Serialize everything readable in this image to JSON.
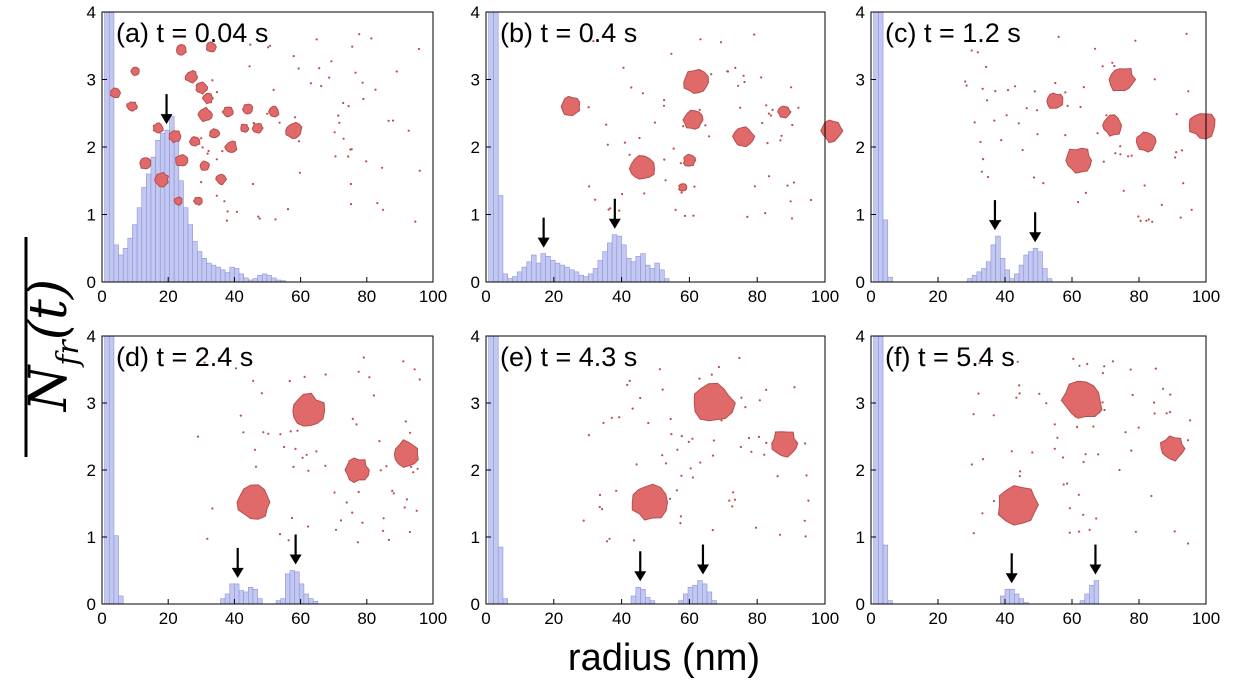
{
  "figure": {
    "xlabel": "radius (nm)",
    "ylabel_main": "N",
    "ylabel_sub": "fr",
    "ylabel_arg": "(t)",
    "colors": {
      "bar_fill": "#c3c8f0",
      "bar_stroke": "#8d93dc",
      "cluster": "#e06a6a",
      "cluster_edge": "#b84d4d",
      "arrow": "#000000"
    }
  },
  "chart_data": [
    {
      "type": "bar",
      "label": "(a)  t = 0.04 s",
      "xlim": [
        0,
        100
      ],
      "ylim": [
        0,
        4
      ],
      "xticks": [
        0,
        20,
        40,
        60,
        80,
        100
      ],
      "yticks": [
        0,
        1,
        2,
        3,
        4
      ],
      "bin_width": 1.4,
      "bins_x": [
        1.5,
        2.9,
        4.3,
        5.7,
        7.1,
        8.5,
        9.9,
        11.3,
        12.7,
        14.1,
        15.5,
        16.9,
        18.3,
        19.7,
        21.1,
        22.5,
        23.9,
        25.3,
        26.7,
        28.1,
        29.5,
        30.9,
        32.3,
        33.7,
        35.1,
        36.5,
        37.9,
        39.3,
        40.7,
        42.1,
        43.5,
        44.9,
        46.3,
        47.7,
        49.1,
        50.5,
        51.9,
        53.3,
        54.7
      ],
      "bins_y": [
        4.0,
        4.0,
        0.55,
        0.4,
        0.5,
        0.65,
        0.85,
        1.1,
        1.4,
        1.6,
        1.85,
        2.1,
        2.2,
        2.25,
        2.45,
        2.15,
        1.5,
        1.1,
        0.85,
        0.6,
        0.45,
        0.35,
        0.28,
        0.25,
        0.22,
        0.18,
        0.14,
        0.22,
        0.2,
        0.12,
        0.06,
        0.03,
        0.05,
        0.1,
        0.12,
        0.1,
        0.06,
        0.03,
        0.02
      ],
      "arrows": [
        19.5
      ],
      "clusters": [
        {
          "x": 0.54,
          "y": 0.3,
          "r": 5
        },
        {
          "x": 0.6,
          "y": 0.22,
          "r": 4
        },
        {
          "x": 0.59,
          "y": 0.35,
          "r": 5
        },
        {
          "x": 0.74,
          "y": 0.14,
          "r": 5
        },
        {
          "x": 0.83,
          "y": 0.13,
          "r": 5
        },
        {
          "x": 0.77,
          "y": 0.24,
          "r": 6
        },
        {
          "x": 0.8,
          "y": 0.28,
          "r": 6
        },
        {
          "x": 0.82,
          "y": 0.32,
          "r": 5
        },
        {
          "x": 0.67,
          "y": 0.43,
          "r": 5
        },
        {
          "x": 0.72,
          "y": 0.46,
          "r": 6
        },
        {
          "x": 0.81,
          "y": 0.38,
          "r": 7
        },
        {
          "x": 0.88,
          "y": 0.37,
          "r": 5
        },
        {
          "x": 0.78,
          "y": 0.48,
          "r": 5
        },
        {
          "x": 0.84,
          "y": 0.45,
          "r": 5
        },
        {
          "x": 0.89,
          "y": 0.5,
          "r": 6
        },
        {
          "x": 0.93,
          "y": 0.43,
          "r": 4
        },
        {
          "x": 0.94,
          "y": 0.36,
          "r": 5
        },
        {
          "x": 0.97,
          "y": 0.43,
          "r": 5
        },
        {
          "x": 1.08,
          "y": 0.44,
          "r": 8
        },
        {
          "x": 1.02,
          "y": 0.37,
          "r": 5
        },
        {
          "x": 0.74,
          "y": 0.55,
          "r": 6
        },
        {
          "x": 0.63,
          "y": 0.56,
          "r": 6
        },
        {
          "x": 0.68,
          "y": 0.62,
          "r": 7
        },
        {
          "x": 0.81,
          "y": 0.57,
          "r": 5
        },
        {
          "x": 0.86,
          "y": 0.62,
          "r": 5
        },
        {
          "x": 0.79,
          "y": 0.7,
          "r": 4
        },
        {
          "x": 0.73,
          "y": 0.7,
          "r": 4
        }
      ]
    },
    {
      "type": "bar",
      "label": "(b)  t = 0.4 s",
      "xlim": [
        0,
        100
      ],
      "ylim": [
        0,
        4
      ],
      "xticks": [
        0,
        20,
        40,
        60,
        80,
        100
      ],
      "yticks": [
        0,
        1,
        2,
        3,
        4
      ],
      "bin_width": 1.4,
      "bins_x": [
        1.5,
        2.9,
        4.3,
        5.7,
        7.1,
        8.5,
        9.9,
        11.3,
        12.7,
        14.1,
        15.5,
        16.9,
        18.3,
        19.7,
        21.1,
        22.5,
        23.9,
        25.3,
        26.7,
        28.1,
        29.5,
        30.9,
        32.3,
        33.7,
        35.1,
        36.5,
        37.9,
        39.3,
        40.7,
        42.1,
        43.5,
        44.9,
        46.3,
        47.7,
        49.1,
        50.5,
        51.9,
        53.3
      ],
      "bins_y": [
        4.0,
        4.0,
        1.28,
        0.12,
        0.05,
        0.08,
        0.15,
        0.22,
        0.3,
        0.4,
        0.28,
        0.42,
        0.38,
        0.32,
        0.28,
        0.25,
        0.22,
        0.18,
        0.15,
        0.1,
        0.08,
        0.12,
        0.2,
        0.32,
        0.45,
        0.58,
        0.7,
        0.68,
        0.55,
        0.35,
        0.3,
        0.38,
        0.42,
        0.25,
        0.2,
        0.28,
        0.18,
        0.05
      ],
      "arrows": [
        17,
        38
      ],
      "clusters": [
        {
          "x": 0.75,
          "y": 0.35,
          "r": 10
        },
        {
          "x": 1.12,
          "y": 0.26,
          "r": 12
        },
        {
          "x": 1.11,
          "y": 0.4,
          "r": 10
        },
        {
          "x": 1.26,
          "y": 0.46,
          "r": 10
        },
        {
          "x": 1.38,
          "y": 0.37,
          "r": 6
        },
        {
          "x": 1.52,
          "y": 0.44,
          "r": 11
        },
        {
          "x": 0.96,
          "y": 0.58,
          "r": 12
        },
        {
          "x": 1.1,
          "y": 0.55,
          "r": 6
        },
        {
          "x": 1.08,
          "y": 0.65,
          "r": 4
        }
      ]
    },
    {
      "type": "bar",
      "label": "(c)  t = 1.2 s",
      "xlim": [
        0,
        100
      ],
      "ylim": [
        0,
        4
      ],
      "xticks": [
        0,
        20,
        40,
        60,
        80,
        100
      ],
      "yticks": [
        0,
        1,
        2,
        3,
        4
      ],
      "bin_width": 1.4,
      "bins_x": [
        1.5,
        2.9,
        4.3,
        5.7,
        29.5,
        30.9,
        32.3,
        33.7,
        35.1,
        36.5,
        37.9,
        39.3,
        40.7,
        42.1,
        43.5,
        44.9,
        46.3,
        47.7,
        49.1,
        50.5,
        51.9,
        53.3
      ],
      "bins_y": [
        4.0,
        4.0,
        0.92,
        0.07,
        0.05,
        0.1,
        0.15,
        0.2,
        0.3,
        0.55,
        0.68,
        0.35,
        0.18,
        0.05,
        0.12,
        0.25,
        0.4,
        0.45,
        0.5,
        0.45,
        0.2,
        0.05
      ],
      "arrows": [
        37,
        49
      ],
      "clusters": [
        {
          "x": 1.05,
          "y": 0.33,
          "r": 8
        },
        {
          "x": 1.25,
          "y": 0.25,
          "r": 13
        },
        {
          "x": 1.22,
          "y": 0.42,
          "r": 10
        },
        {
          "x": 1.32,
          "y": 0.48,
          "r": 10
        },
        {
          "x": 1.49,
          "y": 0.42,
          "r": 13
        },
        {
          "x": 1.12,
          "y": 0.55,
          "r": 13
        }
      ]
    },
    {
      "type": "bar",
      "label": "(d)  t = 2.4 s",
      "xlim": [
        0,
        100
      ],
      "ylim": [
        0,
        4
      ],
      "xticks": [
        0,
        20,
        40,
        60,
        80,
        100
      ],
      "yticks": [
        0,
        1,
        2,
        3,
        4
      ],
      "bin_width": 1.4,
      "bins_x": [
        1.5,
        2.9,
        4.3,
        5.7,
        36.5,
        37.9,
        39.3,
        40.7,
        42.1,
        43.5,
        44.9,
        46.3,
        47.7,
        53.3,
        54.7,
        56.1,
        57.5,
        58.9,
        60.3,
        61.7,
        63.1,
        64.5
      ],
      "bins_y": [
        4.0,
        4.0,
        1.02,
        0.12,
        0.08,
        0.15,
        0.3,
        0.3,
        0.2,
        0.18,
        0.25,
        0.22,
        0.08,
        0.05,
        0.08,
        0.45,
        0.5,
        0.48,
        0.3,
        0.15,
        0.08,
        0.04
      ],
      "arrows": [
        41,
        58.5
      ],
      "clusters": [
        {
          "x": 1.12,
          "y": 0.28,
          "r": 17
        },
        {
          "x": 1.27,
          "y": 0.5,
          "r": 12
        },
        {
          "x": 1.42,
          "y": 0.44,
          "r": 13
        },
        {
          "x": 0.96,
          "y": 0.62,
          "r": 16
        }
      ]
    },
    {
      "type": "bar",
      "label": "(e)  t = 4.3 s",
      "xlim": [
        0,
        100
      ],
      "ylim": [
        0,
        4
      ],
      "xticks": [
        0,
        20,
        40,
        60,
        80,
        100
      ],
      "yticks": [
        0,
        1,
        2,
        3,
        4
      ],
      "bin_width": 1.4,
      "bins_x": [
        1.5,
        2.9,
        4.3,
        5.7,
        43.5,
        44.9,
        46.3,
        47.7,
        49.1,
        57.5,
        58.9,
        60.3,
        61.7,
        63.1,
        64.5,
        65.9,
        67.3
      ],
      "bins_y": [
        4.0,
        4.0,
        0.85,
        0.08,
        0.12,
        0.25,
        0.22,
        0.1,
        0.05,
        0.05,
        0.15,
        0.25,
        0.28,
        0.35,
        0.3,
        0.18,
        0.05
      ],
      "arrows": [
        45.5,
        64
      ],
      "clusters": [
        {
          "x": 1.17,
          "y": 0.25,
          "r": 20
        },
        {
          "x": 1.38,
          "y": 0.4,
          "r": 13
        },
        {
          "x": 0.98,
          "y": 0.62,
          "r": 18
        }
      ]
    },
    {
      "type": "bar",
      "label": "(f)  t = 5.4 s",
      "xlim": [
        0,
        100
      ],
      "ylim": [
        0,
        4
      ],
      "xticks": [
        0,
        20,
        40,
        60,
        80,
        100
      ],
      "yticks": [
        0,
        1,
        2,
        3,
        4
      ],
      "bin_width": 1.4,
      "bins_x": [
        1.5,
        2.9,
        4.3,
        5.7,
        39.3,
        40.7,
        42.1,
        43.5,
        44.9,
        46.3,
        63.1,
        64.5,
        65.9,
        67.3
      ],
      "bins_y": [
        4.0,
        4.0,
        0.88,
        0.05,
        0.12,
        0.22,
        0.22,
        0.15,
        0.08,
        0.02,
        0.05,
        0.15,
        0.28,
        0.35
      ],
      "arrows": [
        42,
        67
      ],
      "clusters": [
        {
          "x": 1.13,
          "y": 0.24,
          "r": 20
        },
        {
          "x": 1.4,
          "y": 0.42,
          "r": 12
        },
        {
          "x": 0.94,
          "y": 0.63,
          "r": 21
        }
      ]
    }
  ]
}
